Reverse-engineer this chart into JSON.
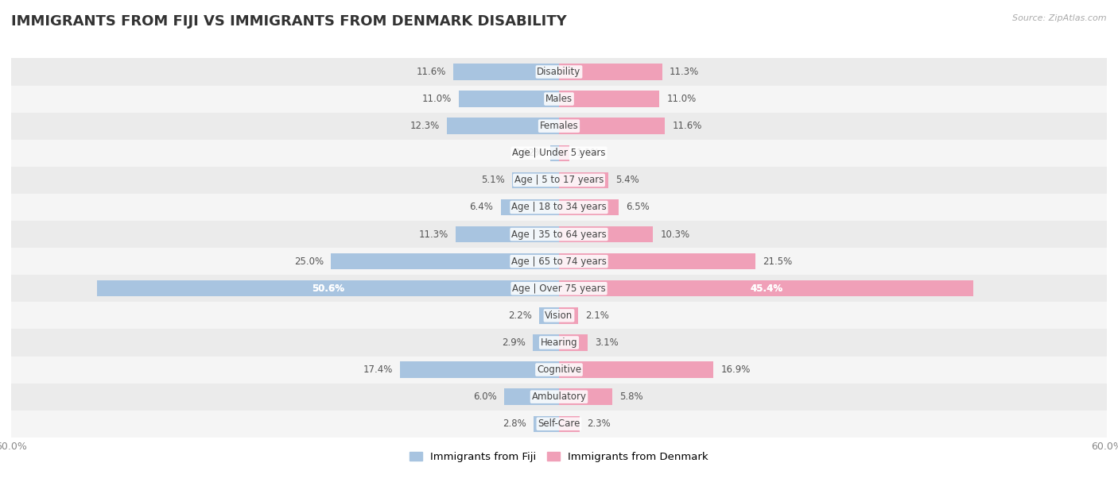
{
  "title": "IMMIGRANTS FROM FIJI VS IMMIGRANTS FROM DENMARK DISABILITY",
  "source": "Source: ZipAtlas.com",
  "categories": [
    "Disability",
    "Males",
    "Females",
    "Age | Under 5 years",
    "Age | 5 to 17 years",
    "Age | 18 to 34 years",
    "Age | 35 to 64 years",
    "Age | 65 to 74 years",
    "Age | Over 75 years",
    "Vision",
    "Hearing",
    "Cognitive",
    "Ambulatory",
    "Self-Care"
  ],
  "fiji_values": [
    11.6,
    11.0,
    12.3,
    0.92,
    5.1,
    6.4,
    11.3,
    25.0,
    50.6,
    2.2,
    2.9,
    17.4,
    6.0,
    2.8
  ],
  "denmark_values": [
    11.3,
    11.0,
    11.6,
    1.1,
    5.4,
    6.5,
    10.3,
    21.5,
    45.4,
    2.1,
    3.1,
    16.9,
    5.8,
    2.3
  ],
  "fiji_color": "#a8c4e0",
  "denmark_color": "#f0a0b8",
  "fiji_label": "Immigrants from Fiji",
  "denmark_label": "Immigrants from Denmark",
  "xlim": 60.0,
  "row_colors": [
    "#ebebeb",
    "#f5f5f5"
  ],
  "title_fontsize": 13,
  "label_fontsize": 8.5,
  "value_fontsize": 8.5,
  "legend_fontsize": 9.5,
  "axis_tick_fontsize": 9
}
